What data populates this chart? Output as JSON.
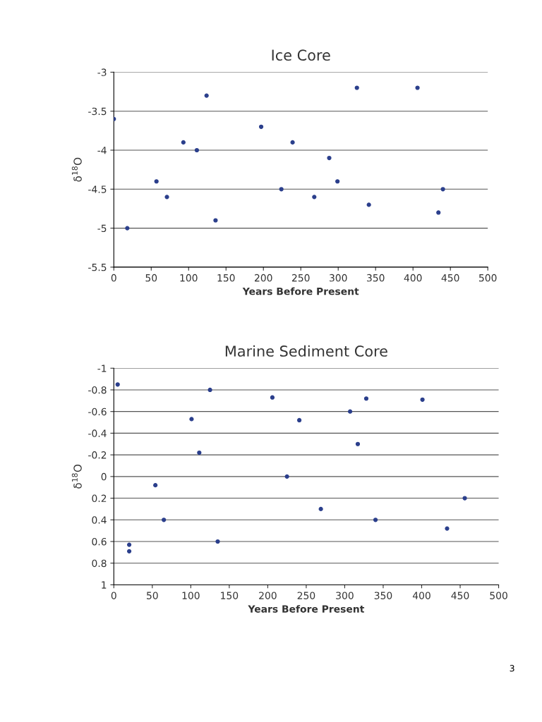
{
  "chart_data": [
    {
      "type": "scatter",
      "title": "Ice Core",
      "xlabel": "Years Before Present",
      "ylabel": "δ$^{18}$O",
      "x": [
        0,
        18,
        57,
        71,
        93,
        111,
        124,
        136,
        197,
        224,
        239,
        268,
        288,
        299,
        325,
        341,
        406,
        434,
        440
      ],
      "series": [
        {
          "color": "#2b3f8c",
          "values": [
            -3.6,
            -5.0,
            -4.4,
            -4.6,
            -3.9,
            -4.0,
            -3.3,
            -4.9,
            -3.7,
            -4.5,
            -3.9,
            -4.6,
            -4.1,
            -4.4,
            -3.2,
            -4.7,
            -3.2,
            -4.8,
            -4.5
          ]
        }
      ],
      "xlim": [
        0,
        500
      ],
      "xticks": [
        0,
        50,
        100,
        150,
        200,
        250,
        300,
        350,
        400,
        450,
        500
      ],
      "ylim": [
        -5.5,
        -3
      ],
      "yticks": [
        -5.5,
        -5,
        -4.5,
        -4,
        -3.5,
        -3
      ],
      "grid": "y",
      "legend": false,
      "marker": "circle"
    },
    {
      "type": "scatter",
      "title": "Marine Sediment Core",
      "xlabel": "Years Before Present",
      "ylabel": "δ$^{18}$O",
      "x": [
        5,
        20,
        20,
        54,
        65,
        101,
        111,
        125,
        135,
        206,
        225,
        241,
        269,
        307,
        317,
        328,
        340,
        401,
        433,
        456
      ],
      "series": [
        {
          "color": "#2b3f8c",
          "values": [
            -0.85,
            0.63,
            0.69,
            0.08,
            0.4,
            -0.53,
            -0.22,
            -0.8,
            0.6,
            -0.73,
            0,
            -0.52,
            0.3,
            -0.6,
            -0.3,
            -0.72,
            0.4,
            -0.71,
            0.48,
            0.2
          ]
        }
      ],
      "xlim": [
        0,
        500
      ],
      "xticks": [
        0,
        50,
        100,
        150,
        200,
        250,
        300,
        350,
        400,
        450,
        500
      ],
      "ylim": [
        1,
        -1
      ],
      "yticks": [
        1,
        0.8,
        0.6,
        0.4,
        0.2,
        0,
        -0.2,
        -0.4,
        -0.6,
        -0.8,
        -1
      ],
      "grid": "y",
      "legend": false,
      "marker": "circle",
      "annotations": [
        "3"
      ]
    }
  ]
}
